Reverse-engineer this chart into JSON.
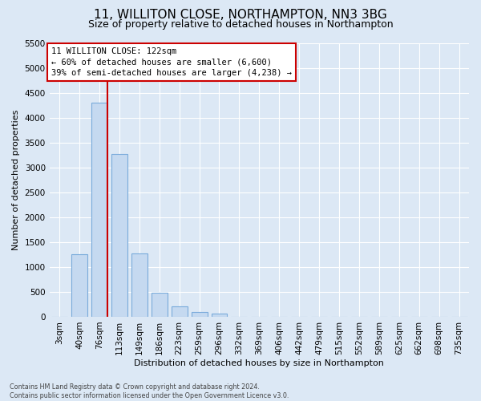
{
  "title": "11, WILLITON CLOSE, NORTHAMPTON, NN3 3BG",
  "subtitle": "Size of property relative to detached houses in Northampton",
  "xlabel": "Distribution of detached houses by size in Northampton",
  "ylabel": "Number of detached properties",
  "footnote1": "Contains HM Land Registry data © Crown copyright and database right 2024.",
  "footnote2": "Contains public sector information licensed under the Open Government Licence v3.0.",
  "bar_labels": [
    "3sqm",
    "40sqm",
    "76sqm",
    "113sqm",
    "149sqm",
    "186sqm",
    "223sqm",
    "259sqm",
    "296sqm",
    "332sqm",
    "369sqm",
    "406sqm",
    "442sqm",
    "479sqm",
    "515sqm",
    "552sqm",
    "589sqm",
    "625sqm",
    "662sqm",
    "698sqm",
    "735sqm"
  ],
  "bar_values": [
    0,
    1250,
    4300,
    3280,
    1270,
    480,
    210,
    90,
    60,
    0,
    0,
    0,
    0,
    0,
    0,
    0,
    0,
    0,
    0,
    0,
    0
  ],
  "bar_color": "#c5d9f0",
  "bar_edge_color": "#7aabdb",
  "vline_color": "#cc0000",
  "annotation_line1": "11 WILLITON CLOSE: 122sqm",
  "annotation_line2": "← 60% of detached houses are smaller (6,600)",
  "annotation_line3": "39% of semi-detached houses are larger (4,238) →",
  "annotation_box_color": "#cc0000",
  "ylim": [
    0,
    5500
  ],
  "yticks": [
    0,
    500,
    1000,
    1500,
    2000,
    2500,
    3000,
    3500,
    4000,
    4500,
    5000,
    5500
  ],
  "grid_color": "#ffffff",
  "bg_color": "#dce8f5",
  "title_fontsize": 11,
  "subtitle_fontsize": 9,
  "axis_label_fontsize": 8,
  "tick_fontsize": 7.5,
  "annotation_fontsize": 7.5
}
